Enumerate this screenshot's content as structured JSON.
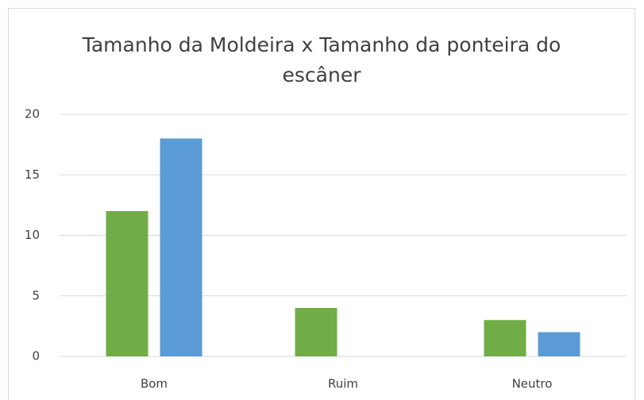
{
  "chart_data": {
    "type": "bar",
    "title": "Tamanho da Moldeira x Tamanho da ponteira do escâner",
    "categories": [
      "Bom",
      "Ruim",
      "Neutro"
    ],
    "series": [
      {
        "color": "#70ad47",
        "values": [
          12,
          4,
          3
        ]
      },
      {
        "color": "#5b9bd5",
        "values": [
          18,
          0,
          2
        ]
      }
    ],
    "ylim": [
      0,
      20
    ],
    "yticks": [
      0,
      5,
      10,
      15,
      20
    ],
    "grid": true
  }
}
